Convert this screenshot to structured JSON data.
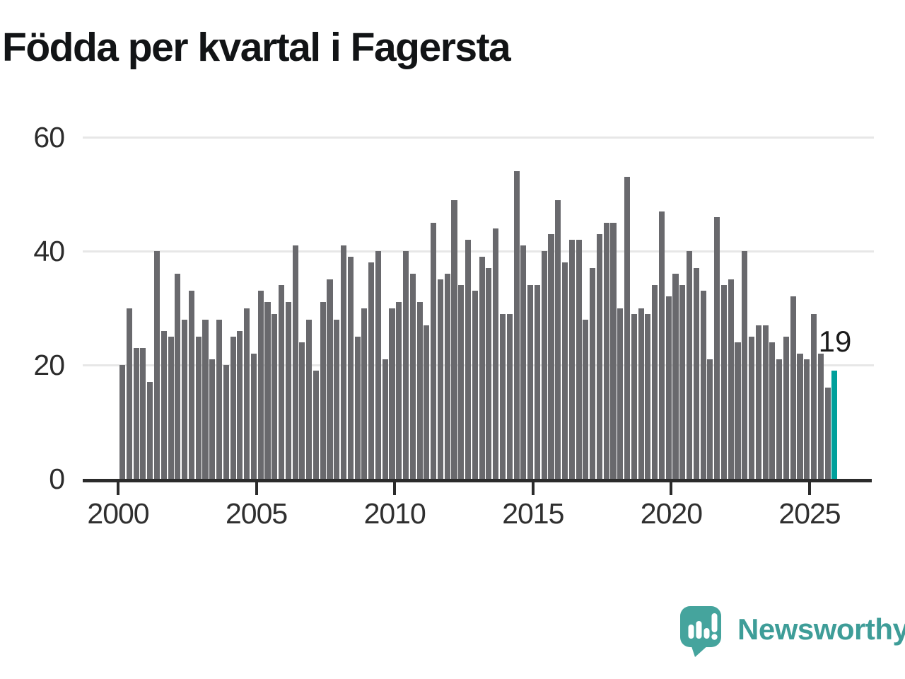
{
  "title": "Födda per kvartal i Fagersta",
  "chart_data": {
    "type": "bar",
    "title": "Födda per kvartal i Fagersta",
    "start_year": 2000,
    "quarters_per_year": 4,
    "values": [
      20,
      30,
      23,
      23,
      17,
      40,
      26,
      25,
      36,
      28,
      33,
      25,
      28,
      21,
      28,
      20,
      25,
      26,
      30,
      22,
      33,
      31,
      29,
      34,
      31,
      41,
      24,
      28,
      19,
      31,
      35,
      28,
      41,
      39,
      25,
      30,
      38,
      40,
      21,
      30,
      31,
      40,
      36,
      31,
      27,
      45,
      35,
      36,
      49,
      34,
      42,
      33,
      39,
      37,
      44,
      29,
      29,
      54,
      41,
      34,
      34,
      40,
      43,
      49,
      38,
      42,
      42,
      28,
      37,
      43,
      45,
      45,
      30,
      53,
      29,
      30,
      29,
      34,
      47,
      32,
      36,
      34,
      40,
      37,
      33,
      21,
      46,
      34,
      35,
      24,
      40,
      25,
      27,
      27,
      24,
      21,
      25,
      32,
      22,
      21,
      29,
      22,
      16,
      19
    ],
    "highlight": {
      "index": 103,
      "value": 19,
      "label": "19"
    },
    "y_ticks": [
      0,
      20,
      40,
      60
    ],
    "x_ticks": [
      2000,
      2005,
      2010,
      2015,
      2020,
      2025
    ],
    "ylim": [
      0,
      60
    ],
    "grid": "horizontal",
    "legend": "none",
    "bar_color": "#69696d",
    "highlight_color": "#00a09b",
    "gridline_color": "#e7e7e7",
    "axis_color": "#2b2b2b"
  },
  "branding": {
    "logo_text": "Newsworthy",
    "teal": "#3e9d98",
    "mark_teal": "#45a49d"
  }
}
